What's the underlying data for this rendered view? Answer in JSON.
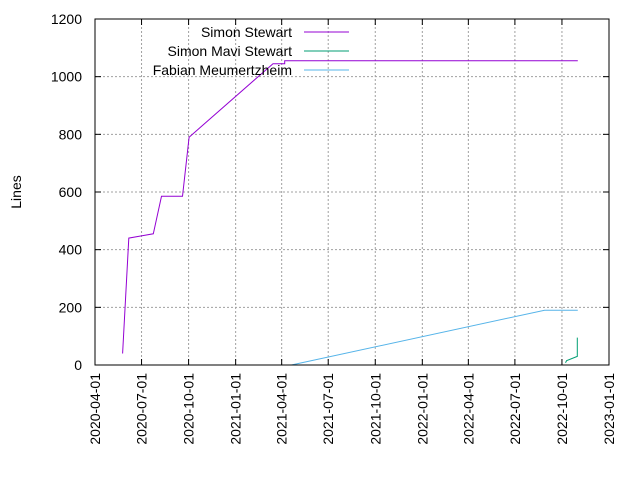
{
  "chart_data": {
    "type": "line",
    "title": "",
    "xlabel": "",
    "ylabel": "Lines",
    "ylim": [
      0,
      1200
    ],
    "xlim": [
      "2020-04-01",
      "2023-01-01"
    ],
    "grid": true,
    "legend_position": "top-left",
    "y_ticks": [
      0,
      200,
      400,
      600,
      800,
      1000,
      1200
    ],
    "x_ticks": [
      "2020-04-01",
      "2020-07-01",
      "2020-10-01",
      "2021-01-01",
      "2021-04-01",
      "2021-07-01",
      "2021-10-01",
      "2022-01-01",
      "2022-04-01",
      "2022-07-01",
      "2022-10-01",
      "2023-01-01"
    ],
    "series": [
      {
        "name": "Simon Stewart",
        "color": "#9400d3",
        "points": [
          [
            "2020-05-25",
            40
          ],
          [
            "2020-06-06",
            440
          ],
          [
            "2020-07-02",
            448
          ],
          [
            "2020-07-24",
            455
          ],
          [
            "2020-08-09",
            585
          ],
          [
            "2020-09-19",
            585
          ],
          [
            "2020-10-02",
            790
          ],
          [
            "2021-03-15",
            1045
          ],
          [
            "2021-04-07",
            1045
          ],
          [
            "2021-04-07",
            1055
          ],
          [
            "2022-11-01",
            1055
          ]
        ]
      },
      {
        "name": "Simon Mavi Stewart",
        "color": "#009e73",
        "points": [
          [
            "2022-10-08",
            8
          ],
          [
            "2022-10-10",
            15
          ],
          [
            "2022-10-31",
            30
          ],
          [
            "2022-10-31",
            95
          ]
        ]
      },
      {
        "name": "Fabian Meumertzheim",
        "color": "#56b4e9",
        "points": [
          [
            "2021-04-20",
            0
          ],
          [
            "2022-08-28",
            190
          ],
          [
            "2022-11-01",
            190
          ]
        ]
      }
    ]
  }
}
